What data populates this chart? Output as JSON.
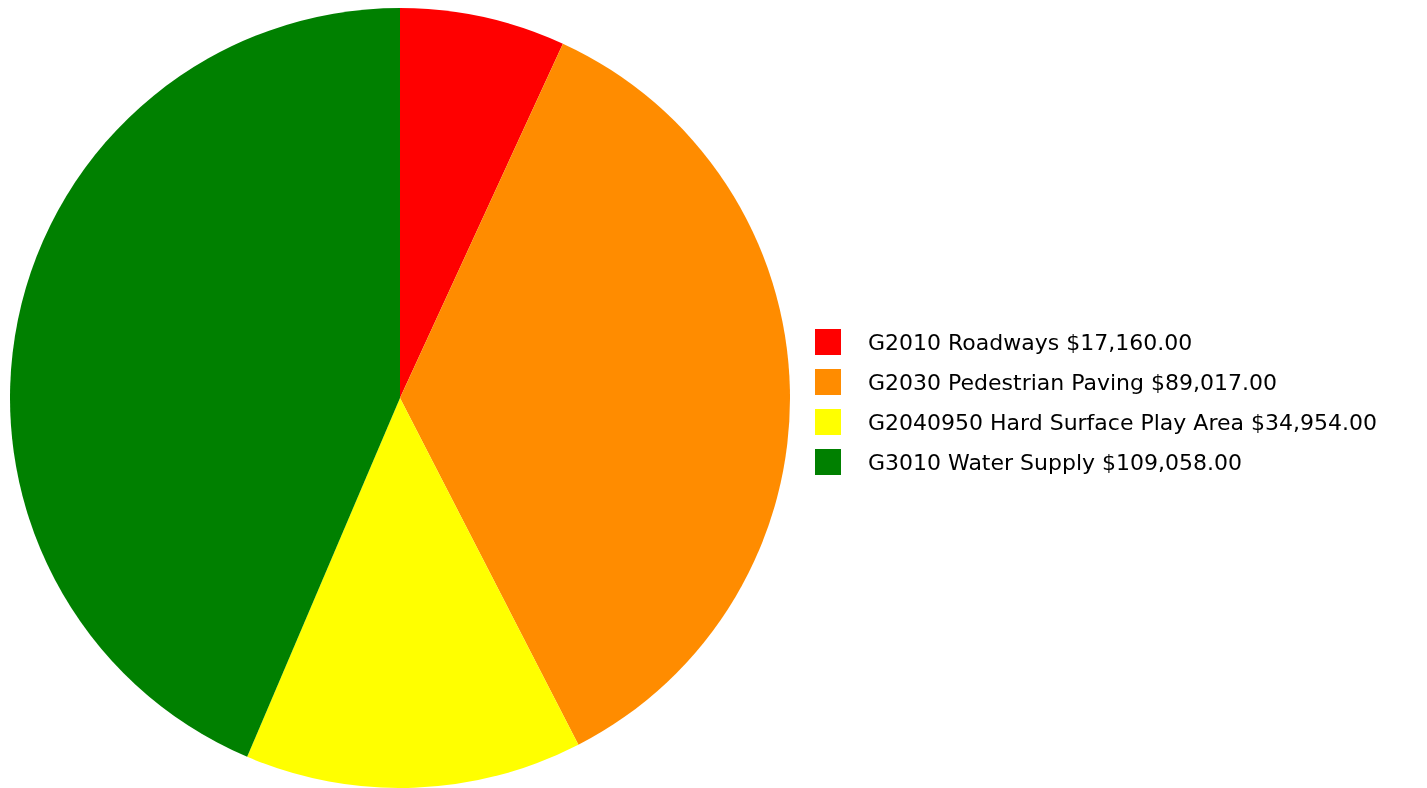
{
  "chart_data": {
    "type": "pie",
    "categories": [
      "G2010 Roadways",
      "G2030 Pedestrian Paving",
      "G2040950 Hard Surface Play Area",
      "G3010 Water Supply"
    ],
    "values": [
      17160,
      89017,
      34954,
      109058
    ],
    "value_labels": [
      "$17,160.00",
      "$89,017.00",
      "$34,954.00",
      "$109,058.00"
    ],
    "colors": [
      "#ff0000",
      "#ff8c00",
      "#ffff00",
      "#008000"
    ],
    "legend": "right"
  }
}
